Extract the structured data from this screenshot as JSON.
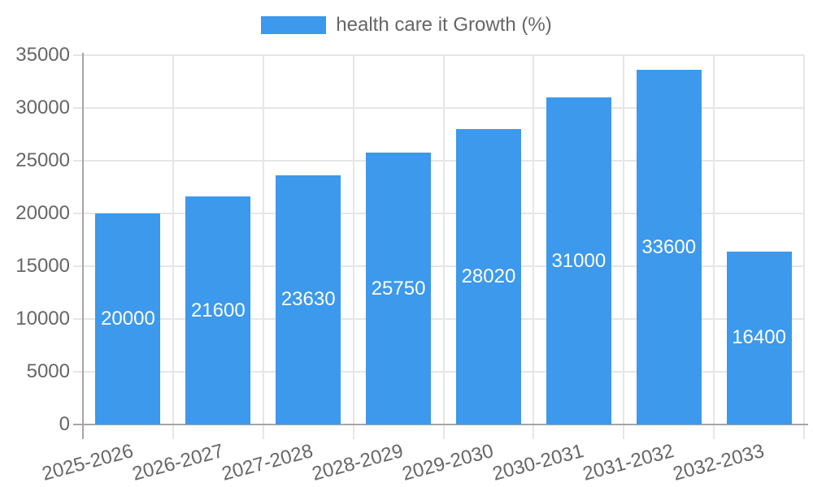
{
  "colors": {
    "bar": "#3C99EC",
    "axis_line": "#a6a6a6",
    "grid_line": "#e6e6e6",
    "tick_text": "#666666",
    "legend_text": "#666666",
    "bar_value_text": "#ffffff",
    "background": "#ffffff"
  },
  "legend": {
    "position": "top",
    "items": [
      {
        "label": "health care it Growth (%)",
        "color": "#3C99EC"
      }
    ]
  },
  "chart_data": {
    "type": "bar",
    "title": "",
    "xlabel": "",
    "ylabel": "",
    "categories": [
      "2025-2026",
      "2026-2027",
      "2027-2028",
      "2028-2029",
      "2029-2030",
      "2030-2031",
      "2031-2032",
      "2032-2033"
    ],
    "series": [
      {
        "name": "health care it Growth (%)",
        "color": "#3C99EC",
        "values": [
          20000,
          21600,
          23630,
          25750,
          28020,
          31000,
          33600,
          16400
        ]
      }
    ],
    "bar_value_labels": [
      "20000",
      "21600",
      "23630",
      "25750",
      "28020",
      "31000",
      "33600",
      "16400"
    ],
    "ylim": [
      0,
      35000
    ],
    "yticks": [
      0,
      5000,
      10000,
      15000,
      20000,
      25000,
      30000,
      35000
    ],
    "grid": true,
    "legend_position": "top",
    "x_tick_rotation_deg": -15
  }
}
